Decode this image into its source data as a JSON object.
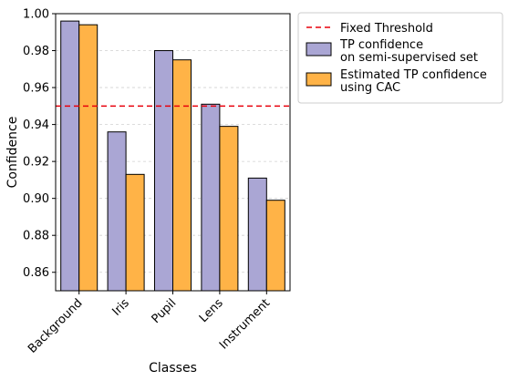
{
  "chart_data": {
    "type": "bar",
    "xlabel": "Classes",
    "ylabel": "Confidence",
    "categories": [
      "Background",
      "Iris",
      "Pupil",
      "Lens",
      "Instrument"
    ],
    "series": [
      {
        "name": "TP confidence\non semi-supervised set",
        "color": "#aaa6d4",
        "values": [
          0.996,
          0.936,
          0.98,
          0.951,
          0.911
        ]
      },
      {
        "name": "Estimated TP confidence\nusing CAC",
        "color": "#ffb347",
        "values": [
          0.994,
          0.913,
          0.975,
          0.939,
          0.899
        ]
      }
    ],
    "threshold": {
      "name": "Fixed Threshold",
      "value": 0.95,
      "color": "#e8000b",
      "style": "dashed"
    },
    "ylim": [
      0.85,
      1.0
    ],
    "yticks": [
      "0.86",
      "0.88",
      "0.90",
      "0.92",
      "0.94",
      "0.96",
      "0.98",
      "1.00"
    ],
    "grid": "horizontal-dashed",
    "legend_position": "outside-right-top"
  }
}
